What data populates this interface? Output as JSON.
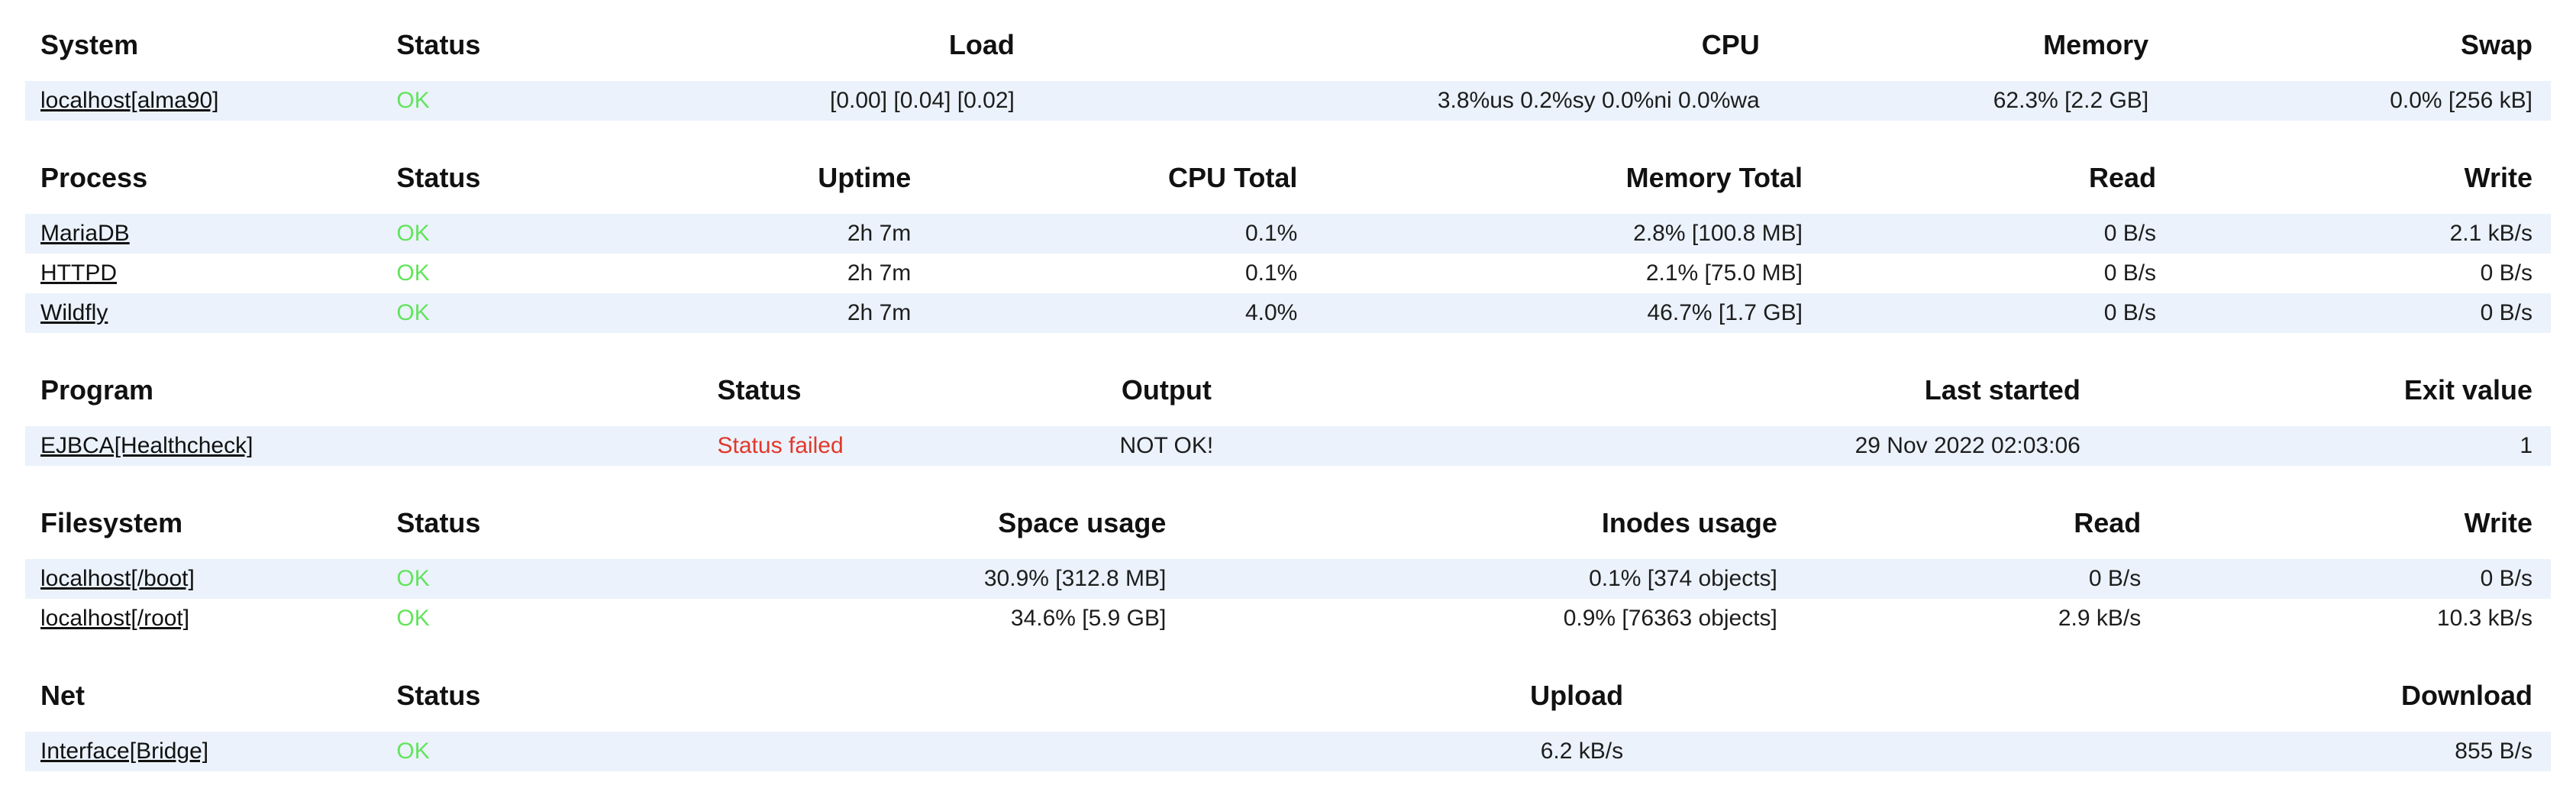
{
  "colors": {
    "row_stripe": "#ebf2fb",
    "status_ok": "#62e45c",
    "status_failed": "#e2372a",
    "heading_text": "#111111",
    "cell_text": "#1d1d1d"
  },
  "tables": [
    {
      "name": "system",
      "columns": [
        {
          "label": "System"
        },
        {
          "label": "Status"
        },
        {
          "label": "Load"
        },
        {
          "label": "CPU"
        },
        {
          "label": "Memory"
        },
        {
          "label": "Swap"
        }
      ],
      "rows": [
        {
          "cells": [
            {
              "text": "localhost[alma90]",
              "type": "link"
            },
            {
              "text": "OK",
              "type": "ok"
            },
            {
              "text": "[0.00] [0.04] [0.02]",
              "type": "text"
            },
            {
              "text": "3.8%us 0.2%sy 0.0%ni 0.0%wa",
              "type": "text"
            },
            {
              "text": "62.3% [2.2 GB]",
              "type": "text"
            },
            {
              "text": "0.0% [256 kB]",
              "type": "text"
            }
          ]
        }
      ]
    },
    {
      "name": "process",
      "columns": [
        {
          "label": "Process"
        },
        {
          "label": "Status"
        },
        {
          "label": "Uptime"
        },
        {
          "label": "CPU Total"
        },
        {
          "label": "Memory Total"
        },
        {
          "label": "Read"
        },
        {
          "label": "Write"
        }
      ],
      "rows": [
        {
          "cells": [
            {
              "text": "MariaDB",
              "type": "link"
            },
            {
              "text": "OK",
              "type": "ok"
            },
            {
              "text": "2h 7m",
              "type": "text"
            },
            {
              "text": "0.1%",
              "type": "text"
            },
            {
              "text": "2.8% [100.8 MB]",
              "type": "text"
            },
            {
              "text": "0 B/s",
              "type": "text"
            },
            {
              "text": "2.1 kB/s",
              "type": "text"
            }
          ]
        },
        {
          "cells": [
            {
              "text": "HTTPD",
              "type": "link"
            },
            {
              "text": "OK",
              "type": "ok"
            },
            {
              "text": "2h 7m",
              "type": "text"
            },
            {
              "text": "0.1%",
              "type": "text"
            },
            {
              "text": "2.1% [75.0 MB]",
              "type": "text"
            },
            {
              "text": "0 B/s",
              "type": "text"
            },
            {
              "text": "0 B/s",
              "type": "text"
            }
          ]
        },
        {
          "cells": [
            {
              "text": "Wildfly",
              "type": "link"
            },
            {
              "text": "OK",
              "type": "ok"
            },
            {
              "text": "2h 7m",
              "type": "text"
            },
            {
              "text": "4.0%",
              "type": "text"
            },
            {
              "text": "46.7% [1.7 GB]",
              "type": "text"
            },
            {
              "text": "0 B/s",
              "type": "text"
            },
            {
              "text": "0 B/s",
              "type": "text"
            }
          ]
        }
      ]
    },
    {
      "name": "program",
      "columns": [
        {
          "label": "Program"
        },
        {
          "label": "Status"
        },
        {
          "label": "Output"
        },
        {
          "label": "Last started"
        },
        {
          "label": "Exit value"
        }
      ],
      "rows": [
        {
          "cells": [
            {
              "text": "EJBCA[Healthcheck]",
              "type": "link"
            },
            {
              "text": "Status failed",
              "type": "fail"
            },
            {
              "text": "NOT OK!",
              "type": "text"
            },
            {
              "text": "29 Nov 2022 02:03:06",
              "type": "text"
            },
            {
              "text": "1",
              "type": "text"
            }
          ]
        }
      ]
    },
    {
      "name": "filesystem",
      "columns": [
        {
          "label": "Filesystem"
        },
        {
          "label": "Status"
        },
        {
          "label": "Space usage"
        },
        {
          "label": "Inodes usage"
        },
        {
          "label": "Read"
        },
        {
          "label": "Write"
        }
      ],
      "rows": [
        {
          "cells": [
            {
              "text": "localhost[/boot]",
              "type": "link"
            },
            {
              "text": "OK",
              "type": "ok"
            },
            {
              "text": "30.9% [312.8 MB]",
              "type": "text"
            },
            {
              "text": "0.1% [374 objects]",
              "type": "text"
            },
            {
              "text": "0 B/s",
              "type": "text"
            },
            {
              "text": "0 B/s",
              "type": "text"
            }
          ]
        },
        {
          "cells": [
            {
              "text": "localhost[/root]",
              "type": "link"
            },
            {
              "text": "OK",
              "type": "ok"
            },
            {
              "text": "34.6% [5.9 GB]",
              "type": "text"
            },
            {
              "text": "0.9% [76363 objects]",
              "type": "text"
            },
            {
              "text": "2.9 kB/s",
              "type": "text"
            },
            {
              "text": "10.3 kB/s",
              "type": "text"
            }
          ]
        }
      ]
    },
    {
      "name": "net",
      "columns": [
        {
          "label": "Net"
        },
        {
          "label": "Status"
        },
        {
          "label": "Upload"
        },
        {
          "label": "Download"
        }
      ],
      "rows": [
        {
          "cells": [
            {
              "text": "Interface[Bridge]",
              "type": "link"
            },
            {
              "text": "OK",
              "type": "ok"
            },
            {
              "text": "6.2 kB/s",
              "type": "text"
            },
            {
              "text": "855 B/s",
              "type": "text"
            }
          ]
        }
      ]
    }
  ]
}
